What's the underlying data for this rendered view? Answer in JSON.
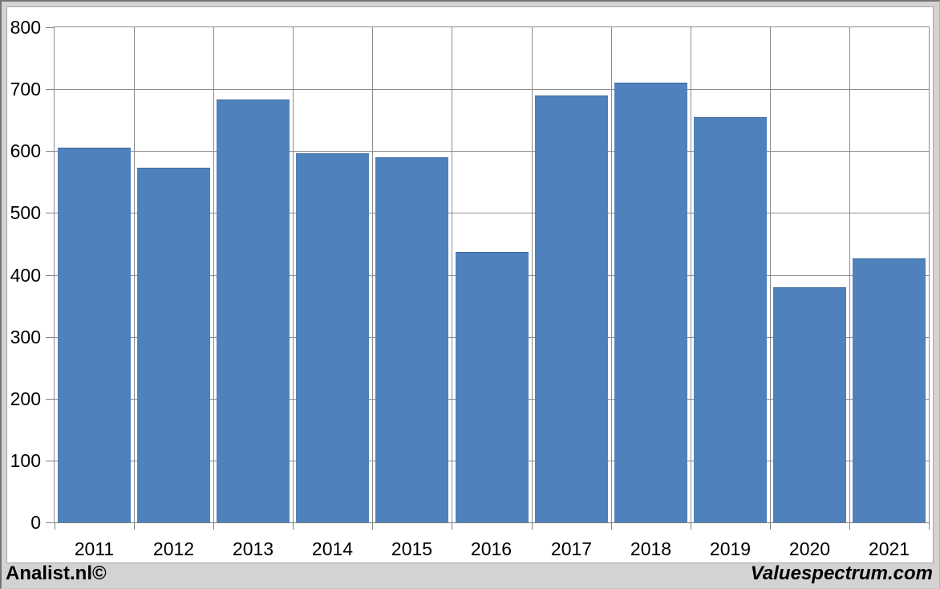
{
  "chart_data": {
    "type": "bar",
    "title": "",
    "xlabel": "",
    "ylabel": "",
    "categories": [
      "2011",
      "2012",
      "2013",
      "2014",
      "2015",
      "2016",
      "2017",
      "2018",
      "2019",
      "2020",
      "2021"
    ],
    "values": [
      605,
      573,
      683,
      597,
      590,
      437,
      690,
      710,
      655,
      380,
      427
    ],
    "ylim": [
      0,
      800
    ],
    "ytick_interval": 100,
    "yticks": [
      0,
      100,
      200,
      300,
      400,
      500,
      600,
      700,
      800
    ],
    "grid": true,
    "legend": "none"
  },
  "footer": {
    "source_left": "Analist.nl©",
    "source_right": "Valuespectrum.com"
  },
  "colors": {
    "bar_fill": "#4F81BD",
    "gridline": "#8C8C8C",
    "axis_line": "#808080",
    "plot_bg": "#FFFFFF",
    "outer_bg": "#D3D3D3",
    "label_text": "#000000"
  }
}
